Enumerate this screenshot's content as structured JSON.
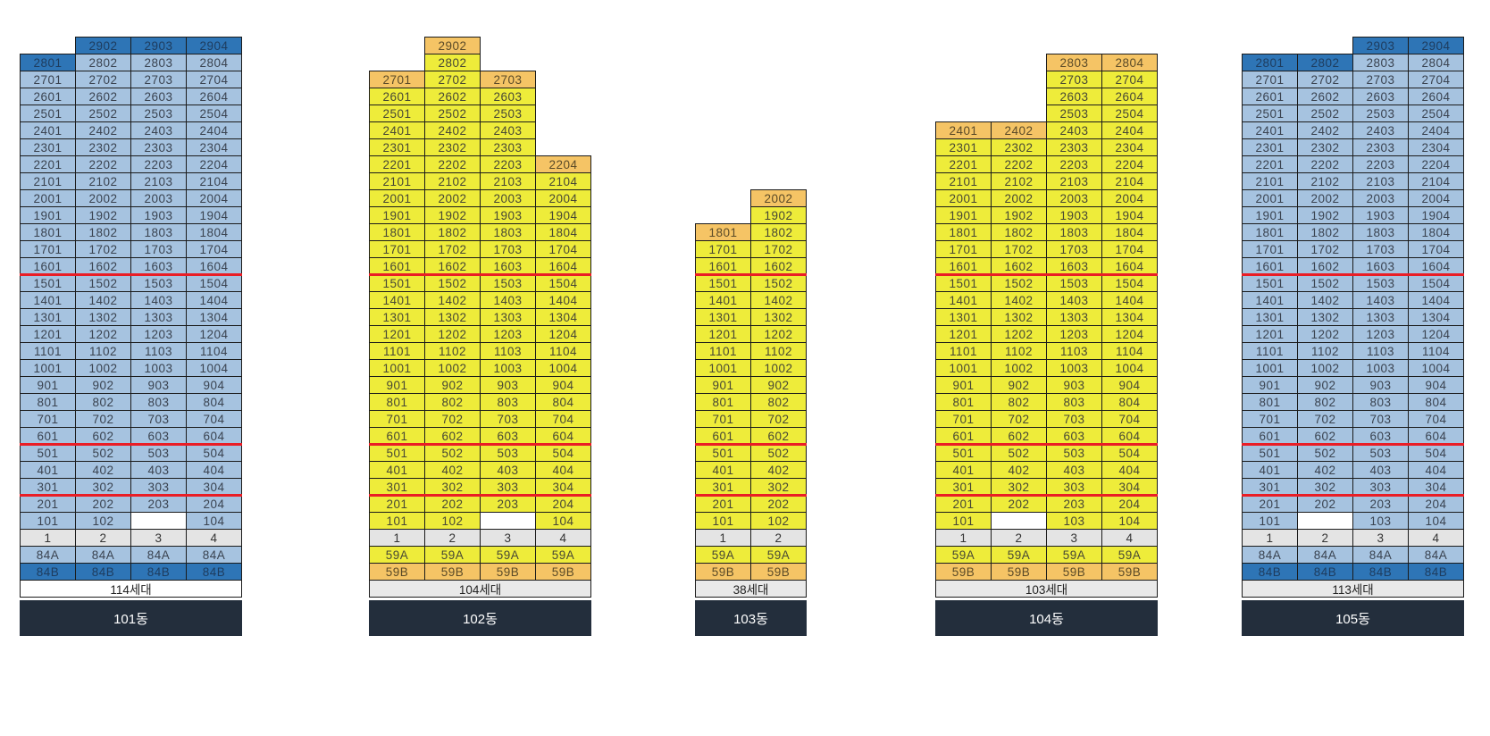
{
  "colors": {
    "page_background": "#ffffff",
    "grid_border": "#1b1b1b",
    "line_row_bg": "#e4e4e4",
    "blank_cell_bg": "#ffffff",
    "red_divider": "#ea1d25",
    "footer_bg": "#232e3c",
    "footer_text": "#ffffff"
  },
  "palettes": {
    "blue": {
      "base": "#a6c3e0",
      "highlight": "#2e75b6",
      "base_text": "#3a4350",
      "highlight_text": "#1e3c5e"
    },
    "yellow": {
      "base": "#eeec3a",
      "highlight": "#f5c465",
      "base_text": "#474735",
      "highlight_text": "#5a4a28"
    }
  },
  "red_lines_after_floors": [
    16,
    6,
    3
  ],
  "buildings": [
    {
      "id": "101",
      "name": "101동",
      "units_total": "114세대",
      "units_row_bg": "#ffffff",
      "palette": "blue",
      "columns": 4,
      "line_numbers": [
        "1",
        "2",
        "3",
        "4"
      ],
      "type_rows": [
        {
          "label": "84A",
          "variant": "base"
        },
        {
          "label": "84B",
          "variant": "accent"
        }
      ],
      "floors": [
        [
          null,
          "2902*",
          "2903*",
          "2904*"
        ],
        [
          "2801*",
          "2802",
          "2803",
          "2804"
        ],
        [
          "2701",
          "2702",
          "2703",
          "2704"
        ],
        [
          "2601",
          "2602",
          "2603",
          "2604"
        ],
        [
          "2501",
          "2502",
          "2503",
          "2504"
        ],
        [
          "2401",
          "2402",
          "2403",
          "2404"
        ],
        [
          "2301",
          "2302",
          "2303",
          "2304"
        ],
        [
          "2201",
          "2202",
          "2203",
          "2204"
        ],
        [
          "2101",
          "2102",
          "2103",
          "2104"
        ],
        [
          "2001",
          "2002",
          "2003",
          "2004"
        ],
        [
          "1901",
          "1902",
          "1903",
          "1904"
        ],
        [
          "1801",
          "1802",
          "1803",
          "1804"
        ],
        [
          "1701",
          "1702",
          "1703",
          "1704"
        ],
        [
          "1601",
          "1602",
          "1603",
          "1604"
        ],
        [
          "1501",
          "1502",
          "1503",
          "1504"
        ],
        [
          "1401",
          "1402",
          "1403",
          "1404"
        ],
        [
          "1301",
          "1302",
          "1303",
          "1304"
        ],
        [
          "1201",
          "1202",
          "1203",
          "1204"
        ],
        [
          "1101",
          "1102",
          "1103",
          "1104"
        ],
        [
          "1001",
          "1002",
          "1003",
          "1004"
        ],
        [
          "901",
          "902",
          "903",
          "904"
        ],
        [
          "801",
          "802",
          "803",
          "804"
        ],
        [
          "701",
          "702",
          "703",
          "704"
        ],
        [
          "601",
          "602",
          "603",
          "604"
        ],
        [
          "501",
          "502",
          "503",
          "504"
        ],
        [
          "401",
          "402",
          "403",
          "404"
        ],
        [
          "301",
          "302",
          "303",
          "304"
        ],
        [
          "201",
          "202",
          "203",
          "204"
        ],
        [
          "101",
          "102",
          "",
          "104"
        ]
      ]
    },
    {
      "id": "102",
      "name": "102동",
      "units_total": "104세대",
      "units_row_bg": "#e9e9e9",
      "palette": "yellow",
      "columns": 4,
      "line_numbers": [
        "1",
        "2",
        "3",
        "4"
      ],
      "type_rows": [
        {
          "label": "59A",
          "variant": "base"
        },
        {
          "label": "59B",
          "variant": "accent"
        }
      ],
      "floors": [
        [
          null,
          "2902*",
          null,
          null
        ],
        [
          null,
          "2802",
          null,
          null
        ],
        [
          "2701*",
          "2702",
          "2703*",
          null
        ],
        [
          "2601",
          "2602",
          "2603",
          null
        ],
        [
          "2501",
          "2502",
          "2503",
          null
        ],
        [
          "2401",
          "2402",
          "2403",
          null
        ],
        [
          "2301",
          "2302",
          "2303",
          null
        ],
        [
          "2201",
          "2202",
          "2203",
          "2204*"
        ],
        [
          "2101",
          "2102",
          "2103",
          "2104"
        ],
        [
          "2001",
          "2002",
          "2003",
          "2004"
        ],
        [
          "1901",
          "1902",
          "1903",
          "1904"
        ],
        [
          "1801",
          "1802",
          "1803",
          "1804"
        ],
        [
          "1701",
          "1702",
          "1703",
          "1704"
        ],
        [
          "1601",
          "1602",
          "1603",
          "1604"
        ],
        [
          "1501",
          "1502",
          "1503",
          "1504"
        ],
        [
          "1401",
          "1402",
          "1403",
          "1404"
        ],
        [
          "1301",
          "1302",
          "1303",
          "1304"
        ],
        [
          "1201",
          "1202",
          "1203",
          "1204"
        ],
        [
          "1101",
          "1102",
          "1103",
          "1104"
        ],
        [
          "1001",
          "1002",
          "1003",
          "1004"
        ],
        [
          "901",
          "902",
          "903",
          "904"
        ],
        [
          "801",
          "802",
          "803",
          "804"
        ],
        [
          "701",
          "702",
          "703",
          "704"
        ],
        [
          "601",
          "602",
          "603",
          "604"
        ],
        [
          "501",
          "502",
          "503",
          "504"
        ],
        [
          "401",
          "402",
          "403",
          "404"
        ],
        [
          "301",
          "302",
          "303",
          "304"
        ],
        [
          "201",
          "202",
          "203",
          "204"
        ],
        [
          "101",
          "102",
          "",
          "104"
        ]
      ]
    },
    {
      "id": "103",
      "name": "103동",
      "units_total": "38세대",
      "units_row_bg": "#e9e9e9",
      "palette": "yellow",
      "columns": 2,
      "line_numbers": [
        "1",
        "2"
      ],
      "type_rows": [
        {
          "label": "59A",
          "variant": "base"
        },
        {
          "label": "59B",
          "variant": "accent"
        }
      ],
      "floors": [
        [
          null,
          "2002*"
        ],
        [
          null,
          "1902"
        ],
        [
          "1801*",
          "1802"
        ],
        [
          "1701",
          "1702"
        ],
        [
          "1601",
          "1602"
        ],
        [
          "1501",
          "1502"
        ],
        [
          "1401",
          "1402"
        ],
        [
          "1301",
          "1302"
        ],
        [
          "1201",
          "1202"
        ],
        [
          "1101",
          "1102"
        ],
        [
          "1001",
          "1002"
        ],
        [
          "901",
          "902"
        ],
        [
          "801",
          "802"
        ],
        [
          "701",
          "702"
        ],
        [
          "601",
          "602"
        ],
        [
          "501",
          "502"
        ],
        [
          "401",
          "402"
        ],
        [
          "301",
          "302"
        ],
        [
          "201",
          "202"
        ],
        [
          "101",
          "102"
        ]
      ]
    },
    {
      "id": "104",
      "name": "104동",
      "units_total": "103세대",
      "units_row_bg": "#e9e9e9",
      "palette": "yellow",
      "columns": 4,
      "line_numbers": [
        "1",
        "2",
        "3",
        "4"
      ],
      "type_rows": [
        {
          "label": "59A",
          "variant": "base"
        },
        {
          "label": "59B",
          "variant": "accent"
        }
      ],
      "floors": [
        [
          null,
          null,
          "2803*",
          "2804*"
        ],
        [
          null,
          null,
          "2703",
          "2704"
        ],
        [
          null,
          null,
          "2603",
          "2604"
        ],
        [
          null,
          null,
          "2503",
          "2504"
        ],
        [
          "2401*",
          "2402*",
          "2403",
          "2404"
        ],
        [
          "2301",
          "2302",
          "2303",
          "2304"
        ],
        [
          "2201",
          "2202",
          "2203",
          "2204"
        ],
        [
          "2101",
          "2102",
          "2103",
          "2104"
        ],
        [
          "2001",
          "2002",
          "2003",
          "2004"
        ],
        [
          "1901",
          "1902",
          "1903",
          "1904"
        ],
        [
          "1801",
          "1802",
          "1803",
          "1804"
        ],
        [
          "1701",
          "1702",
          "1703",
          "1704"
        ],
        [
          "1601",
          "1602",
          "1603",
          "1604"
        ],
        [
          "1501",
          "1502",
          "1503",
          "1504"
        ],
        [
          "1401",
          "1402",
          "1403",
          "1404"
        ],
        [
          "1301",
          "1302",
          "1303",
          "1304"
        ],
        [
          "1201",
          "1202",
          "1203",
          "1204"
        ],
        [
          "1101",
          "1102",
          "1103",
          "1104"
        ],
        [
          "1001",
          "1002",
          "1003",
          "1004"
        ],
        [
          "901",
          "902",
          "903",
          "904"
        ],
        [
          "801",
          "802",
          "803",
          "804"
        ],
        [
          "701",
          "702",
          "703",
          "704"
        ],
        [
          "601",
          "602",
          "603",
          "604"
        ],
        [
          "501",
          "502",
          "503",
          "504"
        ],
        [
          "401",
          "402",
          "403",
          "404"
        ],
        [
          "301",
          "302",
          "303",
          "304"
        ],
        [
          "201",
          "202",
          "203",
          "204"
        ],
        [
          "101",
          "",
          "103",
          "104"
        ]
      ]
    },
    {
      "id": "105",
      "name": "105동",
      "units_total": "113세대",
      "units_row_bg": "#e9e9e9",
      "palette": "blue",
      "columns": 4,
      "line_numbers": [
        "1",
        "2",
        "3",
        "4"
      ],
      "type_rows": [
        {
          "label": "84A",
          "variant": "base"
        },
        {
          "label": "84B",
          "variant": "accent"
        }
      ],
      "floors": [
        [
          null,
          null,
          "2903*",
          "2904*"
        ],
        [
          "2801*",
          "2802*",
          "2803",
          "2804"
        ],
        [
          "2701",
          "2702",
          "2703",
          "2704"
        ],
        [
          "2601",
          "2602",
          "2603",
          "2604"
        ],
        [
          "2501",
          "2502",
          "2503",
          "2504"
        ],
        [
          "2401",
          "2402",
          "2403",
          "2404"
        ],
        [
          "2301",
          "2302",
          "2303",
          "2304"
        ],
        [
          "2201",
          "2202",
          "2203",
          "2204"
        ],
        [
          "2101",
          "2102",
          "2103",
          "2104"
        ],
        [
          "2001",
          "2002",
          "2003",
          "2004"
        ],
        [
          "1901",
          "1902",
          "1903",
          "1904"
        ],
        [
          "1801",
          "1802",
          "1803",
          "1804"
        ],
        [
          "1701",
          "1702",
          "1703",
          "1704"
        ],
        [
          "1601",
          "1602",
          "1603",
          "1604"
        ],
        [
          "1501",
          "1502",
          "1503",
          "1504"
        ],
        [
          "1401",
          "1402",
          "1403",
          "1404"
        ],
        [
          "1301",
          "1302",
          "1303",
          "1304"
        ],
        [
          "1201",
          "1202",
          "1203",
          "1204"
        ],
        [
          "1101",
          "1102",
          "1103",
          "1104"
        ],
        [
          "1001",
          "1002",
          "1003",
          "1004"
        ],
        [
          "901",
          "902",
          "903",
          "904"
        ],
        [
          "801",
          "802",
          "803",
          "804"
        ],
        [
          "701",
          "702",
          "703",
          "704"
        ],
        [
          "601",
          "602",
          "603",
          "604"
        ],
        [
          "501",
          "502",
          "503",
          "504"
        ],
        [
          "401",
          "402",
          "403",
          "404"
        ],
        [
          "301",
          "302",
          "303",
          "304"
        ],
        [
          "201",
          "202",
          "203",
          "204"
        ],
        [
          "101",
          "",
          "103",
          "104"
        ]
      ]
    }
  ]
}
